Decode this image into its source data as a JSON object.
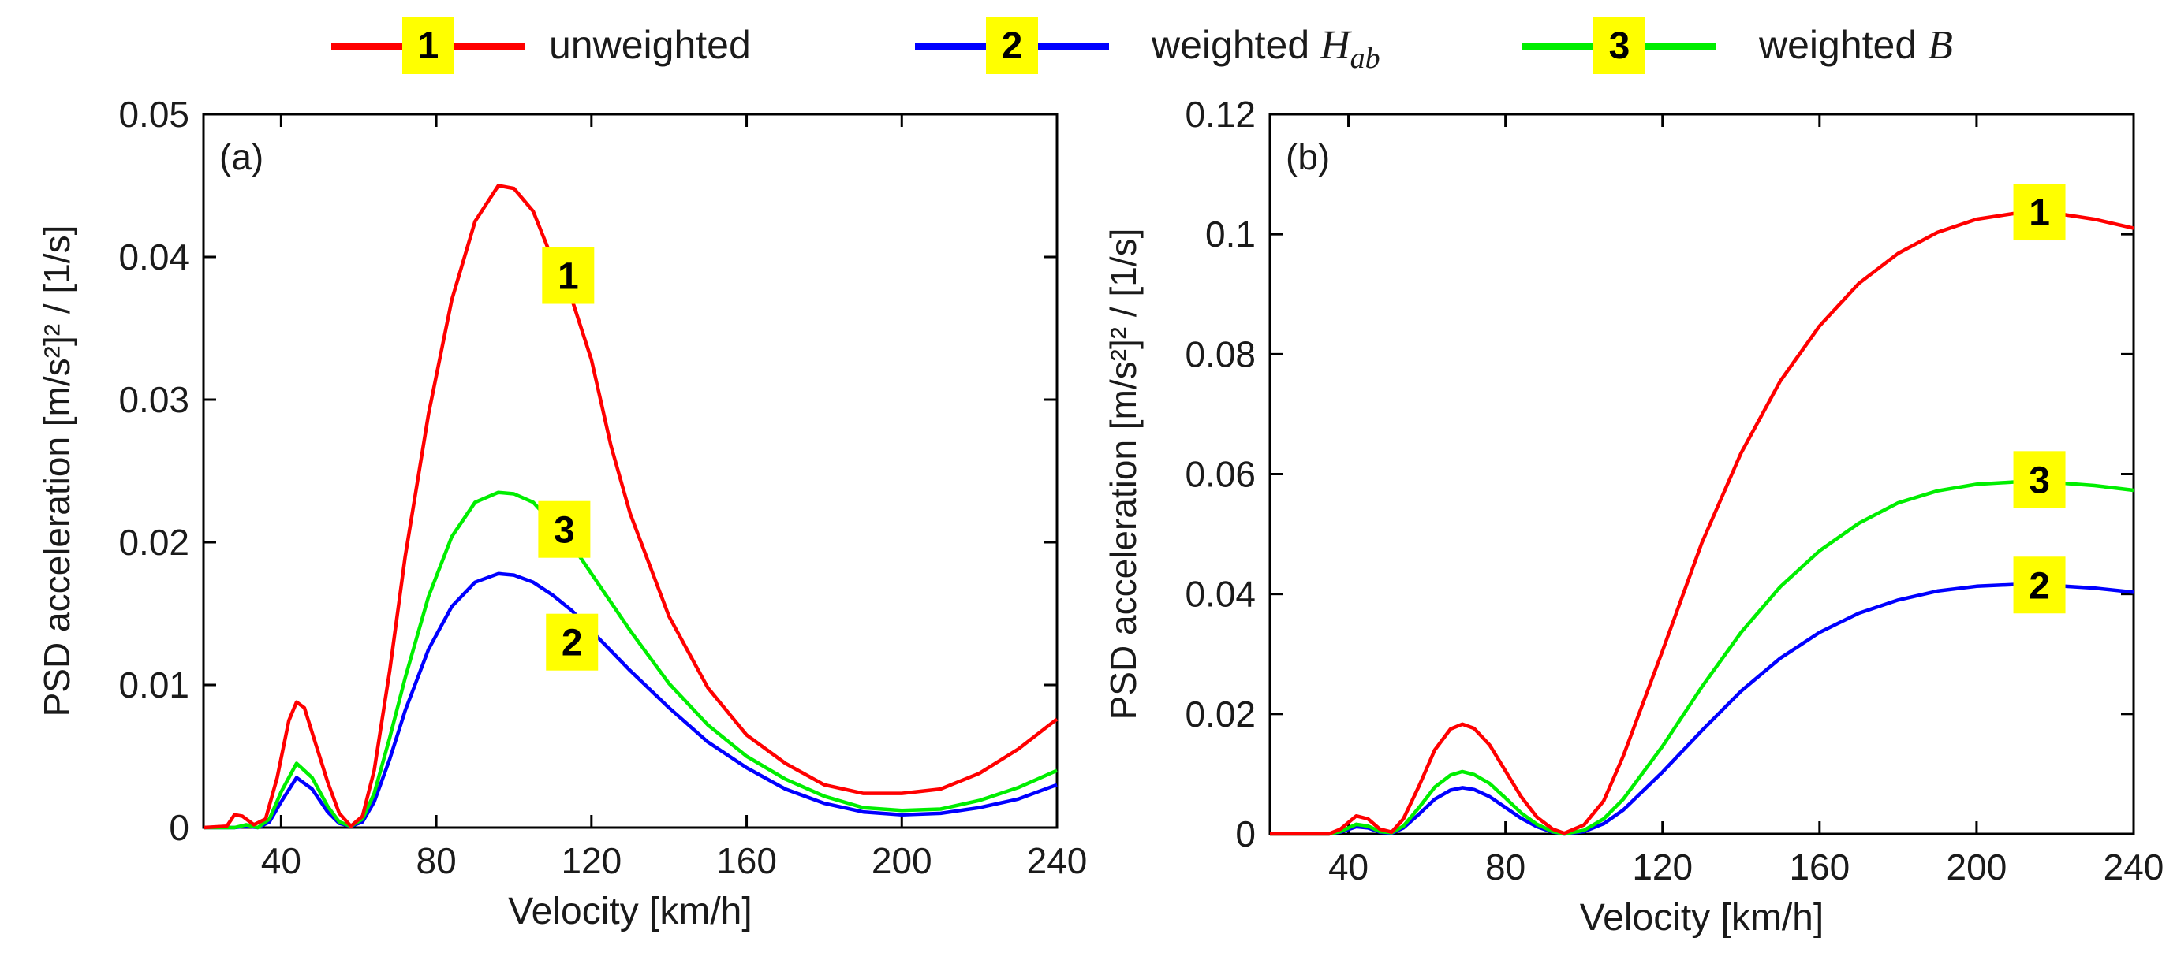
{
  "legend": [
    {
      "num": "1",
      "label": "unweighted",
      "math": "",
      "sub": "",
      "color": "#ff0000"
    },
    {
      "num": "2",
      "label": "weighted",
      "math": "H",
      "sub": "ab",
      "color": "#0000ff"
    },
    {
      "num": "3",
      "label": "weighted",
      "math": "B",
      "sub": "",
      "color": "#00ee00"
    }
  ],
  "chart_data": [
    {
      "type": "line",
      "panel_label": "(a)",
      "xlabel": "Velocity [km/h]",
      "ylabel": "PSD acceleration [m/s²]² / [1/s]",
      "xlim": [
        20,
        240
      ],
      "ylim": [
        0,
        0.05
      ],
      "xticks": [
        40,
        80,
        120,
        160,
        200,
        240
      ],
      "yticks": [
        0,
        0.01,
        0.02,
        0.03,
        0.04,
        0.05
      ],
      "ytick_labels": [
        "0",
        "0.01",
        "0.02",
        "0.03",
        "0.04",
        "0.05"
      ],
      "grid": false,
      "series": [
        {
          "name": "1",
          "color": "#ff0000",
          "points": [
            [
              20,
              0
            ],
            [
              26,
              0.0001
            ],
            [
              28,
              0.0009
            ],
            [
              30,
              0.0008
            ],
            [
              33,
              0.0002
            ],
            [
              36,
              0.0006
            ],
            [
              39,
              0.0035
            ],
            [
              42,
              0.0075
            ],
            [
              44,
              0.0088
            ],
            [
              46,
              0.0084
            ],
            [
              49,
              0.0058
            ],
            [
              52,
              0.0032
            ],
            [
              55,
              0.001
            ],
            [
              58,
              0.0001
            ],
            [
              61,
              0.0008
            ],
            [
              64,
              0.004
            ],
            [
              68,
              0.011
            ],
            [
              72,
              0.019
            ],
            [
              78,
              0.029
            ],
            [
              84,
              0.037
            ],
            [
              90,
              0.0425
            ],
            [
              96,
              0.045
            ],
            [
              100,
              0.0448
            ],
            [
              105,
              0.0432
            ],
            [
              110,
              0.0398
            ],
            [
              115,
              0.037
            ],
            [
              120,
              0.0328
            ],
            [
              125,
              0.0268
            ],
            [
              130,
              0.022
            ],
            [
              140,
              0.0148
            ],
            [
              150,
              0.0098
            ],
            [
              160,
              0.0065
            ],
            [
              170,
              0.0045
            ],
            [
              180,
              0.003
            ],
            [
              190,
              0.0024
            ],
            [
              200,
              0.0024
            ],
            [
              210,
              0.0027
            ],
            [
              220,
              0.0038
            ],
            [
              230,
              0.0055
            ],
            [
              240,
              0.0076
            ]
          ]
        },
        {
          "name": "2",
          "color": "#0000ff",
          "points": [
            [
              20,
              0
            ],
            [
              28,
              0
            ],
            [
              31,
              0.0001
            ],
            [
              34,
              0
            ],
            [
              37,
              0.0004
            ],
            [
              40,
              0.0018
            ],
            [
              44,
              0.0035
            ],
            [
              48,
              0.0027
            ],
            [
              52,
              0.0011
            ],
            [
              55,
              0.0003
            ],
            [
              58,
              0.0001
            ],
            [
              61,
              0.0004
            ],
            [
              64,
              0.0018
            ],
            [
              68,
              0.0048
            ],
            [
              72,
              0.0082
            ],
            [
              78,
              0.0125
            ],
            [
              84,
              0.0155
            ],
            [
              90,
              0.0172
            ],
            [
              96,
              0.0178
            ],
            [
              100,
              0.0177
            ],
            [
              105,
              0.0172
            ],
            [
              110,
              0.0163
            ],
            [
              115,
              0.0152
            ],
            [
              120,
              0.0138
            ],
            [
              125,
              0.0124
            ],
            [
              130,
              0.011
            ],
            [
              140,
              0.0084
            ],
            [
              150,
              0.006
            ],
            [
              160,
              0.0042
            ],
            [
              170,
              0.0027
            ],
            [
              180,
              0.0017
            ],
            [
              190,
              0.0011
            ],
            [
              200,
              0.0009
            ],
            [
              210,
              0.001
            ],
            [
              220,
              0.0014
            ],
            [
              230,
              0.002
            ],
            [
              240,
              0.003
            ]
          ]
        },
        {
          "name": "3",
          "color": "#00ee00",
          "points": [
            [
              20,
              0
            ],
            [
              28,
              0
            ],
            [
              31,
              0.0002
            ],
            [
              34,
              0
            ],
            [
              37,
              0.0006
            ],
            [
              40,
              0.0025
            ],
            [
              44,
              0.0045
            ],
            [
              48,
              0.0035
            ],
            [
              52,
              0.0015
            ],
            [
              55,
              0.0004
            ],
            [
              58,
              0.0001
            ],
            [
              61,
              0.0006
            ],
            [
              64,
              0.0024
            ],
            [
              68,
              0.0063
            ],
            [
              72,
              0.0105
            ],
            [
              78,
              0.0162
            ],
            [
              84,
              0.0204
            ],
            [
              90,
              0.0228
            ],
            [
              96,
              0.0235
            ],
            [
              100,
              0.0234
            ],
            [
              105,
              0.0228
            ],
            [
              110,
              0.0213
            ],
            [
              115,
              0.0198
            ],
            [
              120,
              0.0178
            ],
            [
              125,
              0.0158
            ],
            [
              130,
              0.0138
            ],
            [
              140,
              0.0101
            ],
            [
              150,
              0.0072
            ],
            [
              160,
              0.005
            ],
            [
              170,
              0.0034
            ],
            [
              180,
              0.0022
            ],
            [
              190,
              0.0014
            ],
            [
              200,
              0.0012
            ],
            [
              210,
              0.0013
            ],
            [
              220,
              0.0019
            ],
            [
              230,
              0.0028
            ],
            [
              240,
              0.004
            ]
          ]
        }
      ],
      "annotations": [
        {
          "text": "1",
          "x": 114,
          "y": 0.0387
        },
        {
          "text": "3",
          "x": 113,
          "y": 0.0209
        },
        {
          "text": "2",
          "x": 115,
          "y": 0.013
        }
      ]
    },
    {
      "type": "line",
      "panel_label": "(b)",
      "xlabel": "Velocity [km/h]",
      "ylabel": "PSD acceleration [m/s²]² / [1/s]",
      "xlim": [
        20,
        240
      ],
      "ylim": [
        0,
        0.12
      ],
      "xticks": [
        40,
        80,
        120,
        160,
        200,
        240
      ],
      "yticks": [
        0,
        0.02,
        0.04,
        0.06,
        0.08,
        0.1,
        0.12
      ],
      "ytick_labels": [
        "0",
        "0.02",
        "0.04",
        "0.06",
        "0.08",
        "0.1",
        "0.12"
      ],
      "grid": false,
      "series": [
        {
          "name": "1",
          "color": "#ff0000",
          "points": [
            [
              20,
              0
            ],
            [
              35,
              0
            ],
            [
              38,
              0.0008
            ],
            [
              42,
              0.003
            ],
            [
              45,
              0.0025
            ],
            [
              48,
              0.0008
            ],
            [
              51,
              0.0003
            ],
            [
              54,
              0.0025
            ],
            [
              58,
              0.008
            ],
            [
              62,
              0.014
            ],
            [
              66,
              0.0175
            ],
            [
              69,
              0.0183
            ],
            [
              72,
              0.0176
            ],
            [
              76,
              0.0148
            ],
            [
              80,
              0.0105
            ],
            [
              84,
              0.0062
            ],
            [
              88,
              0.0028
            ],
            [
              92,
              0.0008
            ],
            [
              95,
              0.0001
            ],
            [
              100,
              0.0015
            ],
            [
              105,
              0.0055
            ],
            [
              110,
              0.013
            ],
            [
              120,
              0.0305
            ],
            [
              130,
              0.0485
            ],
            [
              140,
              0.0635
            ],
            [
              150,
              0.0755
            ],
            [
              160,
              0.0847
            ],
            [
              170,
              0.0918
            ],
            [
              180,
              0.0968
            ],
            [
              190,
              0.1003
            ],
            [
              200,
              0.1025
            ],
            [
              210,
              0.1035
            ],
            [
              220,
              0.1035
            ],
            [
              230,
              0.1025
            ],
            [
              240,
              0.101
            ]
          ]
        },
        {
          "name": "2",
          "color": "#0000ff",
          "points": [
            [
              20,
              0
            ],
            [
              35,
              0
            ],
            [
              38,
              0.0003
            ],
            [
              42,
              0.0012
            ],
            [
              45,
              0.001
            ],
            [
              48,
              0.0003
            ],
            [
              51,
              0.0001
            ],
            [
              54,
              0.001
            ],
            [
              58,
              0.0033
            ],
            [
              62,
              0.0058
            ],
            [
              66,
              0.0073
            ],
            [
              69,
              0.0077
            ],
            [
              72,
              0.0074
            ],
            [
              76,
              0.0062
            ],
            [
              80,
              0.0044
            ],
            [
              84,
              0.0026
            ],
            [
              88,
              0.0012
            ],
            [
              92,
              0.0003
            ],
            [
              95,
              0
            ],
            [
              100,
              0.0004
            ],
            [
              105,
              0.0017
            ],
            [
              110,
              0.004
            ],
            [
              120,
              0.0103
            ],
            [
              130,
              0.0172
            ],
            [
              140,
              0.0238
            ],
            [
              150,
              0.0293
            ],
            [
              160,
              0.0336
            ],
            [
              170,
              0.0368
            ],
            [
              180,
              0.039
            ],
            [
              190,
              0.0405
            ],
            [
              200,
              0.0413
            ],
            [
              210,
              0.0416
            ],
            [
              220,
              0.0414
            ],
            [
              230,
              0.041
            ],
            [
              240,
              0.0403
            ]
          ]
        },
        {
          "name": "3",
          "color": "#00ee00",
          "points": [
            [
              20,
              0
            ],
            [
              35,
              0
            ],
            [
              38,
              0.0004
            ],
            [
              42,
              0.0016
            ],
            [
              45,
              0.0013
            ],
            [
              48,
              0.0004
            ],
            [
              51,
              0.0002
            ],
            [
              54,
              0.0013
            ],
            [
              58,
              0.0044
            ],
            [
              62,
              0.0078
            ],
            [
              66,
              0.0098
            ],
            [
              69,
              0.0104
            ],
            [
              72,
              0.0099
            ],
            [
              76,
              0.0084
            ],
            [
              80,
              0.006
            ],
            [
              84,
              0.0035
            ],
            [
              88,
              0.0016
            ],
            [
              92,
              0.0004
            ],
            [
              95,
              0
            ],
            [
              100,
              0.0006
            ],
            [
              105,
              0.0025
            ],
            [
              110,
              0.0058
            ],
            [
              120,
              0.0146
            ],
            [
              130,
              0.0245
            ],
            [
              140,
              0.0336
            ],
            [
              150,
              0.0412
            ],
            [
              160,
              0.0472
            ],
            [
              170,
              0.0518
            ],
            [
              180,
              0.0552
            ],
            [
              190,
              0.0572
            ],
            [
              200,
              0.0583
            ],
            [
              210,
              0.0587
            ],
            [
              220,
              0.0586
            ],
            [
              230,
              0.0581
            ],
            [
              240,
              0.0573
            ]
          ]
        }
      ],
      "annotations": [
        {
          "text": "1",
          "x": 216,
          "y": 0.1037
        },
        {
          "text": "3",
          "x": 216,
          "y": 0.0591
        },
        {
          "text": "2",
          "x": 216,
          "y": 0.0415
        }
      ]
    }
  ]
}
